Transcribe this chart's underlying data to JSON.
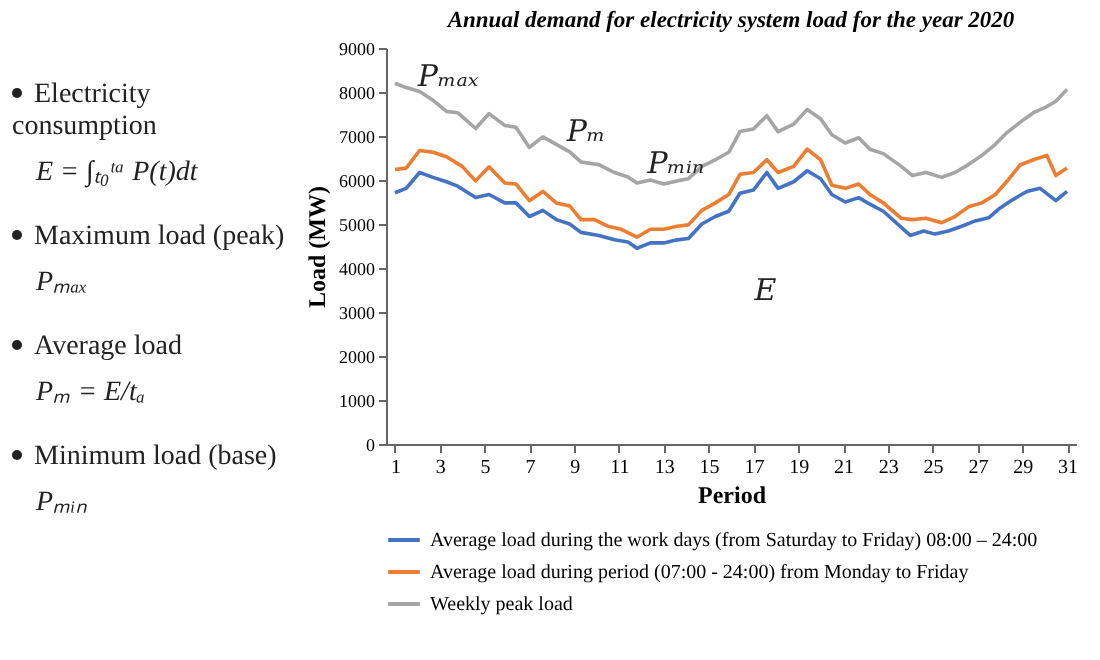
{
  "chart_data": {
    "type": "line",
    "title": "Annual demand for electricity system load for the year 2020",
    "xlabel": "Period",
    "ylabel": "Load (MW)",
    "xlim": [
      0.6,
      31.4
    ],
    "xticks": [
      1,
      3,
      5,
      7,
      9,
      11,
      13,
      15,
      17,
      19,
      21,
      23,
      25,
      27,
      29,
      31
    ],
    "ylim": [
      0,
      9000
    ],
    "yticks": [
      0,
      1000,
      2000,
      3000,
      4000,
      5000,
      6000,
      7000,
      8000,
      9000
    ],
    "grid": false,
    "legend": "bottom",
    "series": [
      {
        "name": "Average load during the work days (from Saturday to Friday) 08:00 – 24:00",
        "color": "#4472c4",
        "x": [
          1,
          1.5,
          2.1,
          2.7,
          3.3,
          3.8,
          4.6,
          5.2,
          5.9,
          6.4,
          7.0,
          7.6,
          8.2,
          8.8,
          9.3,
          10.1,
          10.8,
          11.4,
          11.8,
          12.4,
          13.0,
          13.6,
          14.1,
          14.7,
          15.3,
          15.9,
          16.4,
          17.0,
          17.6,
          18.1,
          18.8,
          19.4,
          20.0,
          20.5,
          21.1,
          21.7,
          22.2,
          22.8,
          24.0,
          24.6,
          25.1,
          25.7,
          26.3,
          26.9,
          27.5,
          28.0,
          28.6,
          29.2,
          29.8,
          30.5,
          31
        ],
        "values": [
          5710,
          5810,
          6170,
          6060,
          5960,
          5860,
          5600,
          5670,
          5480,
          5480,
          5170,
          5310,
          5100,
          5000,
          4810,
          4740,
          4640,
          4590,
          4450,
          4570,
          4570,
          4640,
          4670,
          5000,
          5170,
          5290,
          5700,
          5770,
          6170,
          5810,
          5960,
          6210,
          6030,
          5670,
          5500,
          5600,
          5450,
          5290,
          4740,
          4840,
          4770,
          4840,
          4950,
          5070,
          5140,
          5360,
          5560,
          5740,
          5810,
          5530,
          5740
        ]
      },
      {
        "name": "Average load during period (07:00 - 24:00) from Monday to Friday",
        "color": "#ed7d31",
        "x": [
          1,
          1.5,
          2.1,
          2.7,
          3.3,
          4.0,
          4.6,
          5.2,
          5.9,
          6.4,
          7.0,
          7.6,
          8.2,
          8.8,
          9.3,
          9.9,
          10.5,
          11.1,
          11.8,
          12.4,
          13.0,
          13.6,
          14.1,
          14.7,
          15.3,
          15.9,
          16.4,
          17.0,
          17.6,
          18.1,
          18.8,
          19.4,
          20.0,
          20.5,
          21.1,
          21.7,
          22.2,
          22.8,
          23.6,
          24.1,
          24.7,
          25.4,
          26.0,
          26.6,
          27.2,
          27.8,
          28.3,
          28.9,
          29.5,
          30.1,
          30.5,
          31
        ],
        "values": [
          6240,
          6270,
          6670,
          6630,
          6530,
          6310,
          5980,
          6300,
          5930,
          5910,
          5530,
          5740,
          5480,
          5410,
          5100,
          5100,
          4950,
          4880,
          4700,
          4880,
          4880,
          4950,
          4980,
          5310,
          5480,
          5670,
          6130,
          6170,
          6460,
          6170,
          6310,
          6700,
          6460,
          5880,
          5810,
          5910,
          5670,
          5480,
          5130,
          5100,
          5130,
          5030,
          5170,
          5390,
          5480,
          5670,
          5960,
          6340,
          6460,
          6560,
          6100,
          6270
        ]
      },
      {
        "name": "Weekly peak load",
        "color": "#a5a5a5",
        "x": [
          1,
          1.5,
          2.1,
          2.7,
          3.3,
          3.8,
          4.6,
          5.2,
          5.9,
          6.4,
          7.0,
          7.6,
          8.2,
          8.8,
          9.3,
          10.1,
          10.8,
          11.4,
          11.8,
          12.4,
          13.0,
          13.6,
          14.1,
          14.7,
          15.3,
          15.9,
          16.4,
          17.0,
          17.6,
          18.1,
          18.8,
          19.4,
          20.0,
          20.5,
          21.1,
          21.7,
          22.2,
          22.8,
          23.6,
          24.1,
          24.7,
          25.4,
          26.0,
          26.6,
          27.2,
          27.8,
          28.3,
          28.9,
          29.5,
          30.1,
          30.5,
          31
        ],
        "values": [
          8200,
          8100,
          8010,
          7810,
          7560,
          7530,
          7170,
          7510,
          7240,
          7200,
          6740,
          6980,
          6810,
          6640,
          6410,
          6350,
          6170,
          6070,
          5930,
          6000,
          5910,
          5980,
          6030,
          6310,
          6460,
          6630,
          7100,
          7160,
          7460,
          7100,
          7270,
          7600,
          7390,
          7030,
          6840,
          6960,
          6700,
          6600,
          6310,
          6100,
          6170,
          6060,
          6170,
          6350,
          6560,
          6810,
          7070,
          7310,
          7530,
          7670,
          7790,
          8060
        ]
      }
    ],
    "annotations": [
      "Pₘₐₓ",
      "Pₘ",
      "Pₘᵢₙ",
      "E",
      "Electricity consumption",
      "E = ∫ₜ₀ᵗᵃ P(t)dt",
      "Maximum load (peak)",
      "Pₘₐₓ",
      "Average load",
      "Pₘ = E/tₐ",
      "Minimum load (base)",
      "Pₘᵢₙ"
    ]
  }
}
